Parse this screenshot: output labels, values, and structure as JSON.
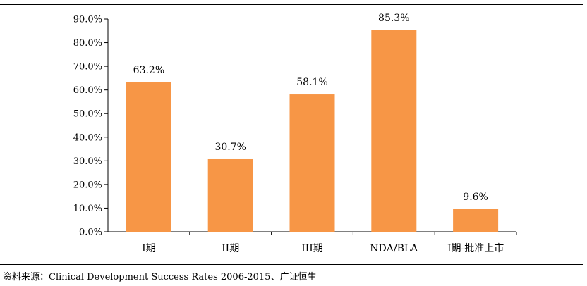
{
  "chart_data": {
    "type": "bar",
    "categories": [
      "I期",
      "II期",
      "III期",
      "NDA/BLA",
      "I期-批准上市"
    ],
    "values": [
      63.2,
      30.7,
      58.1,
      85.3,
      9.6
    ],
    "data_labels": [
      "63.2%",
      "30.7%",
      "58.1%",
      "85.3%",
      "9.6%"
    ],
    "yticks": [
      "0.0%",
      "10.0%",
      "20.0%",
      "30.0%",
      "40.0%",
      "50.0%",
      "60.0%",
      "70.0%",
      "80.0%",
      "90.0%"
    ],
    "ylim": [
      0,
      90
    ],
    "grid": false,
    "bar_color": "#F79646"
  },
  "source": "资料来源：Clinical Development Success Rates 2006-2015、广证恒生"
}
